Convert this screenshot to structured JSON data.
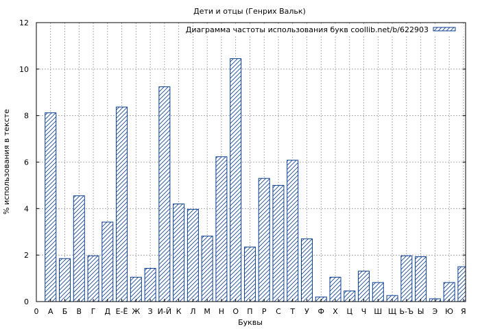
{
  "chart_data": {
    "type": "bar",
    "title": "Дети и отцы (Генрих Вальк)",
    "legend_label": "Диаграмма частоты использования букв coollib.net/b/622903",
    "legend_position": "top-right",
    "xlabel": "Буквы",
    "ylabel": "% использования в тексте",
    "ylim": [
      0,
      12
    ],
    "yticks": [
      0,
      2,
      4,
      6,
      8,
      10,
      12
    ],
    "x_origin_label": "0",
    "grid": true,
    "categories": [
      "А",
      "Б",
      "В",
      "Г",
      "Д",
      "Е-Ё",
      "Ж",
      "З",
      "И-Й",
      "К",
      "Л",
      "М",
      "Н",
      "О",
      "П",
      "Р",
      "С",
      "Т",
      "У",
      "Ф",
      "Х",
      "Ц",
      "Ч",
      "Ш",
      "Щ",
      "Ь-Ъ",
      "Ы",
      "Э",
      "Ю",
      "Я"
    ],
    "values": [
      8.12,
      1.85,
      4.55,
      1.97,
      3.42,
      8.37,
      1.05,
      1.43,
      9.24,
      4.2,
      3.97,
      2.82,
      6.23,
      10.45,
      2.35,
      5.3,
      5.0,
      6.08,
      2.7,
      0.2,
      1.05,
      0.46,
      1.31,
      0.82,
      0.26,
      1.97,
      1.93,
      0.12,
      0.82,
      1.5
    ],
    "colors": {
      "bar_stroke": "#0a3d91",
      "hatch": "#0a3d91",
      "grid": "#999999",
      "axis": "#000000"
    }
  }
}
